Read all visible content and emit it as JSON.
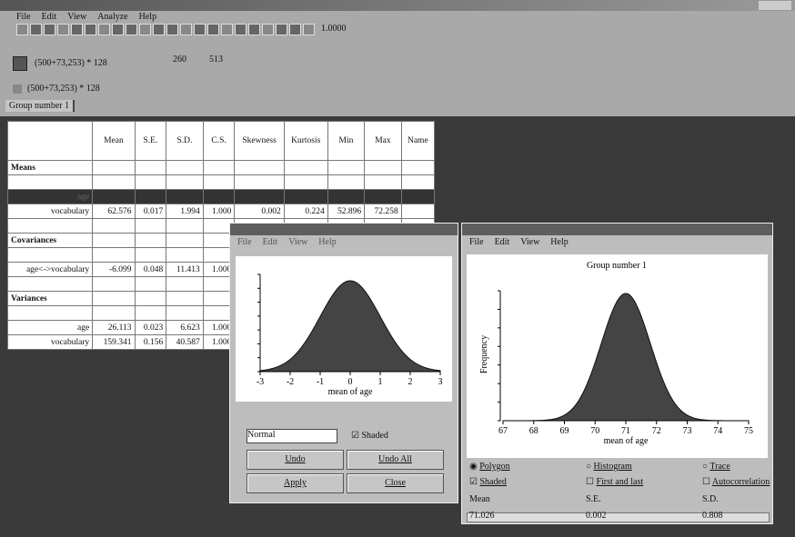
{
  "app": {
    "menu": [
      "File",
      "Edit",
      "View",
      "Analyze",
      "Help"
    ],
    "zoom": "1.0000",
    "status": {
      "position": "(500+73,253) * 128",
      "x": "260",
      "y": "513",
      "position2": "(500+73,253) * 128"
    },
    "tab": "Group number 1"
  },
  "table": {
    "headers": [
      "Mean",
      "S.E.",
      "S.D.",
      "C.S.",
      "Skewness",
      "Kurtosis",
      "Min",
      "Max",
      "Name"
    ],
    "sections": [
      {
        "title": "Means",
        "rows": [
          {
            "label": "age",
            "highlighted": true,
            "cells": []
          },
          {
            "label": "vocabulary",
            "cells": [
              "62.576",
              "0.017",
              "1.994",
              "1.000",
              "0.002",
              "0.224",
              "52.896",
              "72.258"
            ]
          }
        ]
      },
      {
        "title": "Covariances",
        "rows": [
          {
            "label": "age<->vocabulary",
            "cells": [
              "-6.099",
              "0.048",
              "11.413",
              "1.000"
            ]
          }
        ]
      },
      {
        "title": "Variances",
        "rows": [
          {
            "label": "age",
            "cells": [
              "26.113",
              "0.023",
              "6.623",
              "1.000"
            ]
          },
          {
            "label": "vocabulary",
            "cells": [
              "159.341",
              "0.156",
              "40.587",
              "1.000"
            ]
          }
        ]
      }
    ]
  },
  "prior_window": {
    "menu": [
      "File",
      "Edit",
      "View",
      "Help"
    ],
    "xticks": [
      "-3",
      "-2",
      "-1",
      "0",
      "1",
      "2",
      "3"
    ],
    "xlabel": "mean of age",
    "distribution": "Normal",
    "shaded": "Shaded",
    "buttons": [
      "Undo",
      "Undo All",
      "Apply",
      "Close"
    ]
  },
  "posterior_window": {
    "menu": [
      "File",
      "Edit",
      "View",
      "Help"
    ],
    "title": "Group number 1",
    "ylabel": "Frequency",
    "xticks": [
      "67",
      "68",
      "69",
      "70",
      "71",
      "72",
      "73",
      "74",
      "75"
    ],
    "xlabel": "mean of age",
    "options": [
      "Polygon",
      "Histogram",
      "Trace",
      "Shaded",
      "First and last",
      "Autocorrelation"
    ],
    "stats_headers": [
      "Mean",
      "S.E.",
      "S.D."
    ],
    "stats_values": [
      "71.026",
      "0.002",
      "0.808"
    ]
  }
}
